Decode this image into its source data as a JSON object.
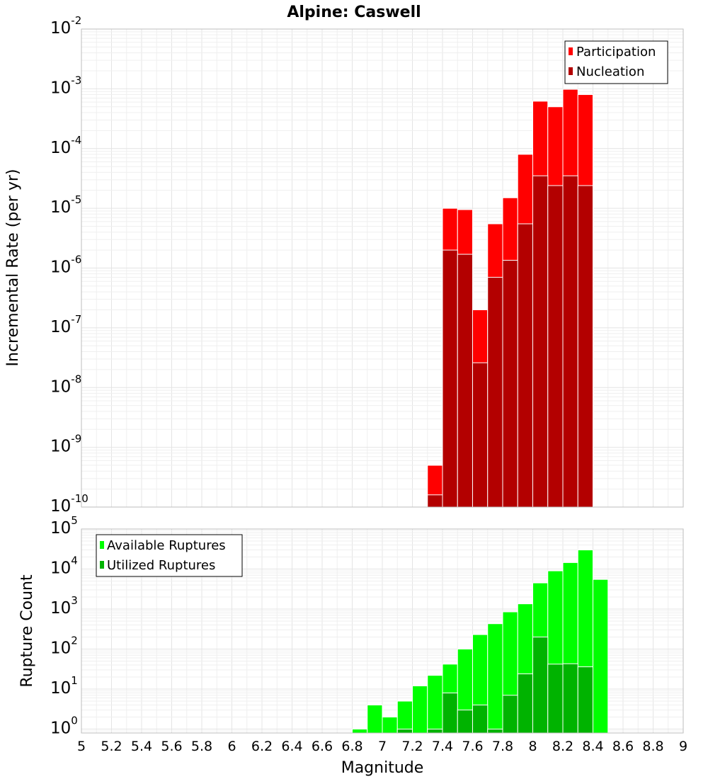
{
  "chart_data": [
    {
      "type": "bar",
      "title": "Alpine: Caswell",
      "xlabel": "",
      "ylabel": "Incremental Rate (per yr)",
      "yscale": "log",
      "xlim": [
        5,
        9
      ],
      "ylim": [
        1e-10,
        0.01
      ],
      "grid": true,
      "legend": "top-right",
      "series": [
        {
          "name": "Participation",
          "color": "#ff0000",
          "x": [
            7.35,
            7.45,
            7.55,
            7.65,
            7.75,
            7.85,
            7.95,
            8.05,
            8.15,
            8.25,
            8.35
          ],
          "values": [
            5e-10,
            1e-05,
            9.5e-06,
            2e-07,
            5.5e-06,
            1.5e-05,
            8e-05,
            0.00062,
            0.0005,
            0.00098,
            0.0008
          ]
        },
        {
          "name": "Nucleation",
          "color": "#b30000",
          "x": [
            7.35,
            7.45,
            7.55,
            7.65,
            7.75,
            7.85,
            7.95,
            8.05,
            8.15,
            8.25,
            8.35
          ],
          "values": [
            1.6e-10,
            2e-06,
            1.7e-06,
            2.6e-08,
            7e-07,
            1.35e-06,
            5.5e-06,
            3.5e-05,
            2.4e-05,
            3.5e-05,
            2.4e-05
          ]
        }
      ],
      "yticks": [
        "10^-10",
        "10^-9",
        "10^-8",
        "10^-7",
        "10^-6",
        "10^-5",
        "10^-4",
        "10^-3",
        "10^-2"
      ]
    },
    {
      "type": "bar",
      "title": "",
      "xlabel": "Magnitude",
      "ylabel": "Rupture Count",
      "yscale": "log",
      "xlim": [
        5,
        9
      ],
      "ylim": [
        0.8,
        100000.0
      ],
      "grid": true,
      "legend": "top-left",
      "series": [
        {
          "name": "Available Ruptures",
          "color": "#00ff00",
          "x": [
            6.85,
            6.95,
            7.05,
            7.15,
            7.25,
            7.35,
            7.45,
            7.55,
            7.65,
            7.75,
            7.85,
            7.95,
            8.05,
            8.15,
            8.25,
            8.35,
            8.45
          ],
          "values": [
            1,
            4,
            2,
            5,
            12,
            22,
            42,
            100,
            230,
            430,
            850,
            1350,
            4500,
            9000,
            14500,
            30000,
            5500
          ]
        },
        {
          "name": "Utilized Ruptures",
          "color": "#00b300",
          "x": [
            7.15,
            7.35,
            7.45,
            7.55,
            7.65,
            7.75,
            7.85,
            7.95,
            8.05,
            8.15,
            8.25,
            8.35
          ],
          "values": [
            1,
            1,
            8,
            3,
            4,
            1,
            7,
            24,
            200,
            42,
            43,
            36
          ]
        }
      ],
      "xticks": [
        "5",
        "5.2",
        "5.4",
        "5.6",
        "5.8",
        "6",
        "6.2",
        "6.4",
        "6.6",
        "6.8",
        "7",
        "7.2",
        "7.4",
        "7.6",
        "7.8",
        "8",
        "8.2",
        "8.4",
        "8.6",
        "8.8",
        "9"
      ],
      "yticks": [
        "10^0",
        "10^1",
        "10^2",
        "10^3",
        "10^4",
        "10^5"
      ]
    }
  ]
}
